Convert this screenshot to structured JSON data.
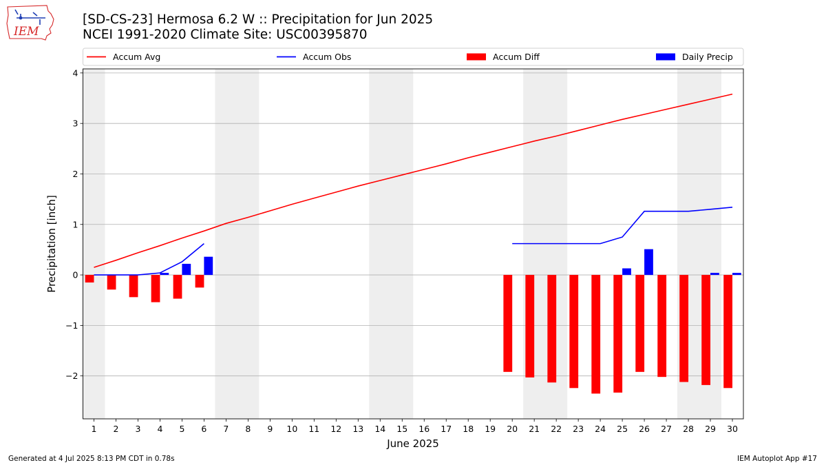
{
  "logo": {
    "text": "IEM",
    "icon": "iowa-state-outline-icon",
    "color": "#d62728"
  },
  "title": "[SD-CS-23] Hermosa 6.2 W :: Precipitation for Jun 2025",
  "subtitle": "NCEI 1991-2020 Climate Site: USC00395870",
  "footer": {
    "left": "Generated at 4 Jul 2025 8:13 PM CDT in 0.78s",
    "right": "IEM Autoplot App #17"
  },
  "chart_data": {
    "type": "bar",
    "xlabel": "June 2025",
    "ylabel": "Precipitation [inch]",
    "xlim": [
      0.5,
      30.5
    ],
    "ylim": [
      -2.85,
      4.08
    ],
    "yticks": [
      -2,
      -1,
      0,
      1,
      2,
      3,
      4
    ],
    "ytick_labels": [
      "−2",
      "−1",
      "0",
      "1",
      "2",
      "3",
      "4"
    ],
    "xticks": [
      1,
      2,
      3,
      4,
      5,
      6,
      7,
      8,
      9,
      10,
      11,
      12,
      13,
      14,
      15,
      16,
      17,
      18,
      19,
      20,
      21,
      22,
      23,
      24,
      25,
      26,
      27,
      28,
      29,
      30
    ],
    "xtick_labels": [
      "1",
      "2",
      "3",
      "4",
      "5",
      "6",
      "7",
      "8",
      "9",
      "10",
      "11",
      "12",
      "13",
      "14",
      "15",
      "16",
      "17",
      "18",
      "19",
      "20",
      "21",
      "22",
      "23",
      "24",
      "25",
      "26",
      "27",
      "28",
      "29",
      "30"
    ],
    "grid": "horizontal",
    "legend_placement": "top",
    "weekend_shading": [
      [
        0.5,
        1.5
      ],
      [
        6.5,
        8.5
      ],
      [
        13.5,
        15.5
      ],
      [
        20.5,
        22.5
      ],
      [
        27.5,
        29.5
      ]
    ],
    "legend": [
      {
        "label": "Accum Avg",
        "kind": "line",
        "color": "#ff0000"
      },
      {
        "label": "Accum Obs",
        "kind": "line",
        "color": "#0000ff"
      },
      {
        "label": "Accum Diff",
        "kind": "bar",
        "color": "#ff0000"
      },
      {
        "label": "Daily Precip",
        "kind": "bar",
        "color": "#0000ff"
      }
    ],
    "series": [
      {
        "name": "Accum Avg",
        "kind": "line",
        "color": "#ff0000",
        "x": [
          1,
          2,
          3,
          4,
          5,
          6,
          7,
          8,
          9,
          10,
          11,
          12,
          13,
          14,
          15,
          16,
          17,
          18,
          19,
          20,
          21,
          22,
          23,
          24,
          25,
          26,
          27,
          28,
          29,
          30
        ],
        "values": [
          0.15,
          0.29,
          0.44,
          0.58,
          0.73,
          0.87,
          1.02,
          1.14,
          1.27,
          1.4,
          1.52,
          1.64,
          1.76,
          1.87,
          1.98,
          2.09,
          2.2,
          2.32,
          2.43,
          2.54,
          2.65,
          2.75,
          2.86,
          2.97,
          3.08,
          3.18,
          3.28,
          3.38,
          3.48,
          3.58
        ]
      },
      {
        "name": "Accum Obs",
        "kind": "line",
        "color": "#0000ff",
        "x": [
          1,
          2,
          3,
          4,
          5,
          6,
          7,
          8,
          9,
          10,
          11,
          12,
          13,
          14,
          15,
          16,
          17,
          18,
          19,
          20,
          21,
          22,
          23,
          24,
          25,
          26,
          27,
          28,
          29,
          30
        ],
        "values": [
          0.0,
          0.0,
          0.0,
          0.04,
          0.26,
          0.62,
          null,
          null,
          null,
          null,
          null,
          null,
          null,
          null,
          null,
          null,
          null,
          null,
          null,
          0.62,
          0.62,
          0.62,
          0.62,
          0.62,
          0.75,
          1.26,
          1.26,
          1.26,
          1.3,
          1.34
        ]
      },
      {
        "name": "Accum Diff",
        "kind": "bar",
        "color": "#ff0000",
        "x": [
          1,
          2,
          3,
          4,
          5,
          6,
          20,
          21,
          22,
          23,
          24,
          25,
          26,
          27,
          28,
          29,
          30
        ],
        "values": [
          -0.15,
          -0.29,
          -0.44,
          -0.54,
          -0.47,
          -0.25,
          -1.92,
          -2.03,
          -2.13,
          -2.24,
          -2.35,
          -2.33,
          -1.92,
          -2.02,
          -2.12,
          -2.18,
          -2.24
        ]
      },
      {
        "name": "Daily Precip",
        "kind": "bar",
        "color": "#0000ff",
        "x": [
          1,
          2,
          3,
          4,
          5,
          6,
          20,
          21,
          22,
          23,
          24,
          25,
          26,
          27,
          28,
          29,
          30
        ],
        "values": [
          0.0,
          0.0,
          0.0,
          0.04,
          0.22,
          0.36,
          0.0,
          0.0,
          0.0,
          0.0,
          0.0,
          0.13,
          0.51,
          0.0,
          0.0,
          0.04,
          0.04
        ]
      }
    ]
  }
}
